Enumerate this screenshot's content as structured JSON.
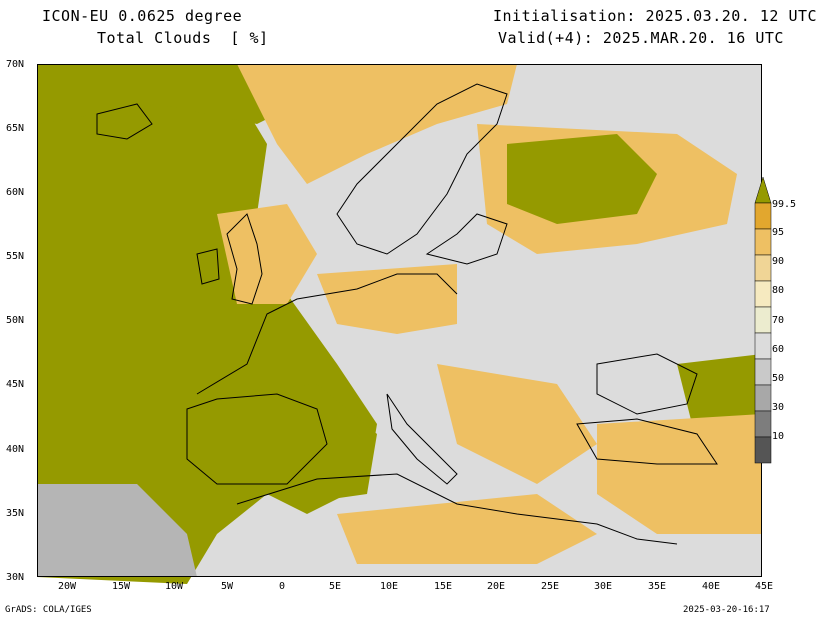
{
  "header": {
    "model": "ICON-EU 0.0625 degree",
    "field": "Total Clouds  [ %]",
    "init": "Initialisation: 2025.03.20. 12 UTC",
    "valid": "Valid(+4): 2025.MAR.20. 16 UTC"
  },
  "lat_labels": [
    "70N",
    "65N",
    "60N",
    "55N",
    "50N",
    "45N",
    "40N",
    "35N",
    "30N"
  ],
  "lon_labels": [
    "20W",
    "15W",
    "10W",
    "5W",
    "0",
    "5E",
    "10E",
    "15E",
    "20E",
    "25E",
    "30E",
    "35E",
    "40E",
    "45E"
  ],
  "colorbar": {
    "labels": [
      "99.5",
      "95",
      "90",
      "80",
      "70",
      "60",
      "50",
      "30",
      "10"
    ],
    "colors": [
      "#e2a72e",
      "#eec063",
      "#f0d596",
      "#f6eac0",
      "#ececcf",
      "#dcdcdc",
      "#c9c9c9",
      "#a8a8a8",
      "#7d7d7d",
      "#555555"
    ],
    "over_color": "#959a00"
  },
  "footer": {
    "left": "GrADS: COLA/IGES",
    "right": "2025-03-20-16:17"
  },
  "map_colors": {
    "ocean_cloud": "#959a00",
    "clear": "#dcdcdc",
    "partial": "#eec063"
  }
}
